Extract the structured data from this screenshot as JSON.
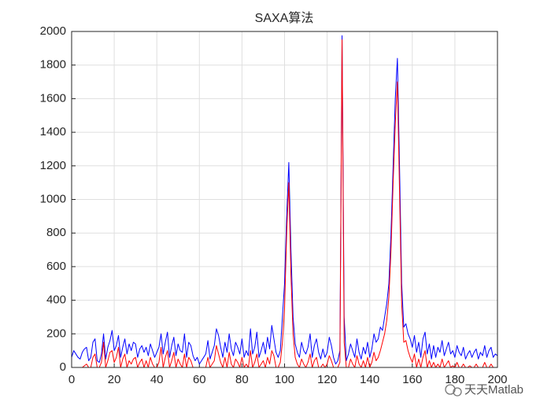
{
  "chart_data": {
    "type": "line",
    "title": "SAXA算法",
    "x": [
      0,
      1,
      2,
      3,
      4,
      5,
      6,
      7,
      8,
      9,
      10,
      11,
      12,
      13,
      14,
      15,
      16,
      17,
      18,
      19,
      20,
      21,
      22,
      23,
      24,
      25,
      26,
      27,
      28,
      29,
      30,
      31,
      32,
      33,
      34,
      35,
      36,
      37,
      38,
      39,
      40,
      41,
      42,
      43,
      44,
      45,
      46,
      47,
      48,
      49,
      50,
      51,
      52,
      53,
      54,
      55,
      56,
      57,
      58,
      59,
      60,
      61,
      62,
      63,
      64,
      65,
      66,
      67,
      68,
      69,
      70,
      71,
      72,
      73,
      74,
      75,
      76,
      77,
      78,
      79,
      80,
      81,
      82,
      83,
      84,
      85,
      86,
      87,
      88,
      89,
      90,
      91,
      92,
      93,
      94,
      95,
      96,
      97,
      98,
      99,
      100,
      101,
      102,
      103,
      104,
      105,
      106,
      107,
      108,
      109,
      110,
      111,
      112,
      113,
      114,
      115,
      116,
      117,
      118,
      119,
      120,
      121,
      122,
      123,
      124,
      125,
      126,
      127,
      128,
      129,
      130,
      131,
      132,
      133,
      134,
      135,
      136,
      137,
      138,
      139,
      140,
      141,
      142,
      143,
      144,
      145,
      146,
      147,
      148,
      149,
      150,
      151,
      152,
      153,
      154,
      155,
      156,
      157,
      158,
      159,
      160,
      161,
      162,
      163,
      164,
      165,
      166,
      167,
      168,
      169,
      170,
      171,
      172,
      173,
      174,
      175,
      176,
      177,
      178,
      179,
      180,
      181,
      182,
      183,
      184,
      185,
      186,
      187,
      188,
      189,
      190,
      191,
      192,
      193,
      194,
      195,
      196,
      197,
      198,
      199,
      200
    ],
    "series": [
      {
        "color": "#0000ff",
        "values": [
          60,
          100,
          80,
          60,
          50,
          90,
          110,
          120,
          40,
          60,
          150,
          170,
          40,
          30,
          80,
          200,
          50,
          120,
          160,
          220,
          100,
          130,
          190,
          60,
          120,
          170,
          80,
          140,
          100,
          150,
          140,
          60,
          110,
          130,
          90,
          120,
          70,
          140,
          100,
          60,
          90,
          120,
          200,
          80,
          150,
          210,
          60,
          130,
          180,
          70,
          140,
          100,
          90,
          200,
          60,
          150,
          130,
          70,
          40,
          60,
          20,
          40,
          60,
          80,
          160,
          50,
          90,
          130,
          230,
          190,
          120,
          60,
          150,
          90,
          200,
          110,
          70,
          150,
          120,
          80,
          170,
          60,
          100,
          70,
          230,
          80,
          120,
          210,
          60,
          100,
          150,
          80,
          180,
          110,
          250,
          170,
          90,
          60,
          100,
          300,
          500,
          900,
          1220,
          700,
          300,
          140,
          90,
          60,
          150,
          100,
          80,
          120,
          200,
          60,
          130,
          170,
          90,
          50,
          110,
          60,
          90,
          180,
          130,
          60,
          20,
          40,
          100,
          1975,
          300,
          40,
          80,
          140,
          100,
          60,
          170,
          90,
          50,
          120,
          80,
          150,
          60,
          110,
          200,
          150,
          170,
          240,
          220,
          300,
          380,
          500,
          800,
          1200,
          1600,
          1840,
          1200,
          500,
          240,
          260,
          200,
          170,
          120,
          190,
          90,
          150,
          60,
          170,
          210,
          80,
          140,
          50,
          130,
          60,
          120,
          90,
          160,
          70,
          110,
          150,
          80,
          100,
          60,
          130,
          90,
          70,
          120,
          50,
          80,
          100,
          60,
          90,
          110,
          50,
          90,
          70,
          130,
          60,
          100,
          120,
          60,
          80,
          70
        ]
      },
      {
        "color": "#ff0000",
        "values": [
          0,
          0,
          0,
          0,
          0,
          0,
          10,
          20,
          0,
          0,
          60,
          80,
          0,
          0,
          30,
          150,
          0,
          40,
          90,
          100,
          30,
          60,
          120,
          0,
          50,
          80,
          0,
          40,
          20,
          50,
          60,
          0,
          30,
          50,
          0,
          40,
          0,
          60,
          20,
          0,
          0,
          30,
          120,
          0,
          60,
          100,
          0,
          40,
          90,
          0,
          50,
          20,
          0,
          80,
          0,
          60,
          40,
          0,
          0,
          0,
          0,
          0,
          0,
          0,
          60,
          0,
          20,
          40,
          130,
          80,
          30,
          0,
          60,
          0,
          90,
          20,
          0,
          50,
          30,
          0,
          60,
          0,
          20,
          0,
          100,
          0,
          30,
          80,
          0,
          20,
          40,
          0,
          60,
          20,
          100,
          70,
          0,
          0,
          30,
          150,
          350,
          800,
          1100,
          550,
          200,
          60,
          20,
          0,
          50,
          20,
          0,
          30,
          80,
          0,
          40,
          60,
          0,
          0,
          20,
          0,
          20,
          70,
          40,
          0,
          0,
          0,
          30,
          1950,
          150,
          0,
          0,
          50,
          20,
          0,
          70,
          20,
          0,
          40,
          0,
          60,
          0,
          30,
          90,
          40,
          60,
          100,
          150,
          200,
          280,
          420,
          700,
          1100,
          1450,
          1700,
          1050,
          380,
          150,
          160,
          100,
          60,
          30,
          80,
          0,
          50,
          0,
          60,
          100,
          0,
          40,
          0,
          30,
          0,
          20,
          0,
          50,
          0,
          20,
          40,
          0,
          10,
          0,
          30,
          0,
          0,
          20,
          0,
          0,
          10,
          0,
          0,
          20,
          0,
          0,
          0,
          30,
          0,
          0,
          20,
          0,
          0,
          0
        ]
      }
    ],
    "xlim": [
      0,
      200
    ],
    "xticks": [
      0,
      20,
      40,
      60,
      80,
      100,
      120,
      140,
      160,
      180,
      200
    ],
    "ylim": [
      0,
      2000
    ],
    "yticks": [
      0,
      200,
      400,
      600,
      800,
      1000,
      1200,
      1400,
      1600,
      1800,
      2000
    ],
    "grid": true,
    "annotation": "天天Matlab"
  }
}
